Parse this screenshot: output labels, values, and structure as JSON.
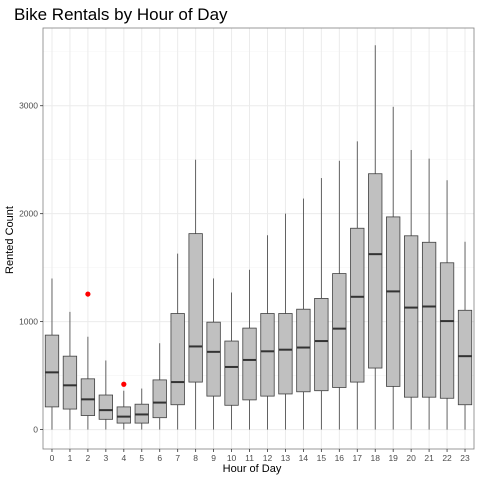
{
  "chart_data": {
    "type": "boxplot",
    "title": "Bike Rentals by Hour of Day",
    "xlabel": "Hour of Day",
    "ylabel": "Rented Count",
    "categories": [
      "0",
      "1",
      "2",
      "3",
      "4",
      "5",
      "6",
      "7",
      "8",
      "9",
      "10",
      "11",
      "12",
      "13",
      "14",
      "15",
      "16",
      "17",
      "18",
      "19",
      "20",
      "21",
      "22",
      "23"
    ],
    "y_ticks": [
      0,
      1000,
      2000,
      3000
    ],
    "ylim": [
      -180,
      3720
    ],
    "grid": true,
    "legend": "none",
    "boxes": [
      {
        "x": "0",
        "whisker_low": 0,
        "q1": 210,
        "median": 530,
        "q3": 875,
        "whisker_high": 1400
      },
      {
        "x": "1",
        "whisker_low": 0,
        "q1": 190,
        "median": 410,
        "q3": 680,
        "whisker_high": 1090
      },
      {
        "x": "2",
        "whisker_low": 0,
        "q1": 130,
        "median": 280,
        "q3": 470,
        "whisker_high": 860
      },
      {
        "x": "3",
        "whisker_low": 0,
        "q1": 95,
        "median": 180,
        "q3": 320,
        "whisker_high": 640
      },
      {
        "x": "4",
        "whisker_low": 0,
        "q1": 60,
        "median": 120,
        "q3": 210,
        "whisker_high": 360
      },
      {
        "x": "5",
        "whisker_low": 0,
        "q1": 60,
        "median": 140,
        "q3": 235,
        "whisker_high": 380
      },
      {
        "x": "6",
        "whisker_low": 0,
        "q1": 110,
        "median": 250,
        "q3": 460,
        "whisker_high": 800
      },
      {
        "x": "7",
        "whisker_low": 0,
        "q1": 230,
        "median": 440,
        "q3": 1075,
        "whisker_high": 1630
      },
      {
        "x": "8",
        "whisker_low": 0,
        "q1": 440,
        "median": 770,
        "q3": 1815,
        "whisker_high": 2500
      },
      {
        "x": "9",
        "whisker_low": 0,
        "q1": 310,
        "median": 720,
        "q3": 995,
        "whisker_high": 1400
      },
      {
        "x": "10",
        "whisker_low": 0,
        "q1": 225,
        "median": 580,
        "q3": 820,
        "whisker_high": 1270
      },
      {
        "x": "11",
        "whisker_low": 0,
        "q1": 275,
        "median": 645,
        "q3": 940,
        "whisker_high": 1480
      },
      {
        "x": "12",
        "whisker_low": 0,
        "q1": 310,
        "median": 725,
        "q3": 1075,
        "whisker_high": 1800
      },
      {
        "x": "13",
        "whisker_low": 0,
        "q1": 330,
        "median": 740,
        "q3": 1075,
        "whisker_high": 2000
      },
      {
        "x": "14",
        "whisker_low": 0,
        "q1": 350,
        "median": 760,
        "q3": 1115,
        "whisker_high": 2140
      },
      {
        "x": "15",
        "whisker_low": 0,
        "q1": 360,
        "median": 820,
        "q3": 1215,
        "whisker_high": 2330
      },
      {
        "x": "16",
        "whisker_low": 0,
        "q1": 390,
        "median": 935,
        "q3": 1445,
        "whisker_high": 2490
      },
      {
        "x": "17",
        "whisker_low": 0,
        "q1": 440,
        "median": 1230,
        "q3": 1865,
        "whisker_high": 2670
      },
      {
        "x": "18",
        "whisker_low": 0,
        "q1": 570,
        "median": 1625,
        "q3": 2370,
        "whisker_high": 3560
      },
      {
        "x": "19",
        "whisker_low": 0,
        "q1": 400,
        "median": 1280,
        "q3": 1970,
        "whisker_high": 2990
      },
      {
        "x": "20",
        "whisker_low": 0,
        "q1": 300,
        "median": 1130,
        "q3": 1795,
        "whisker_high": 2590
      },
      {
        "x": "21",
        "whisker_low": 0,
        "q1": 300,
        "median": 1140,
        "q3": 1735,
        "whisker_high": 2510
      },
      {
        "x": "22",
        "whisker_low": 0,
        "q1": 290,
        "median": 1005,
        "q3": 1545,
        "whisker_high": 2310
      },
      {
        "x": "23",
        "whisker_low": 0,
        "q1": 230,
        "median": 680,
        "q3": 1105,
        "whisker_high": 1740
      }
    ],
    "outliers": [
      {
        "x": "2",
        "y": 1255
      },
      {
        "x": "4",
        "y": 420
      }
    ],
    "colors": {
      "box_fill": "#c0c0c0",
      "box_stroke": "#404040",
      "whisker": "#404040",
      "median": "#333333",
      "outlier": "#ff0000",
      "grid_major": "#ebebeb",
      "grid_minor": "#f5f5f5",
      "panel_border": "#7f7f7f",
      "tick_text": "#4d4d4d"
    }
  }
}
